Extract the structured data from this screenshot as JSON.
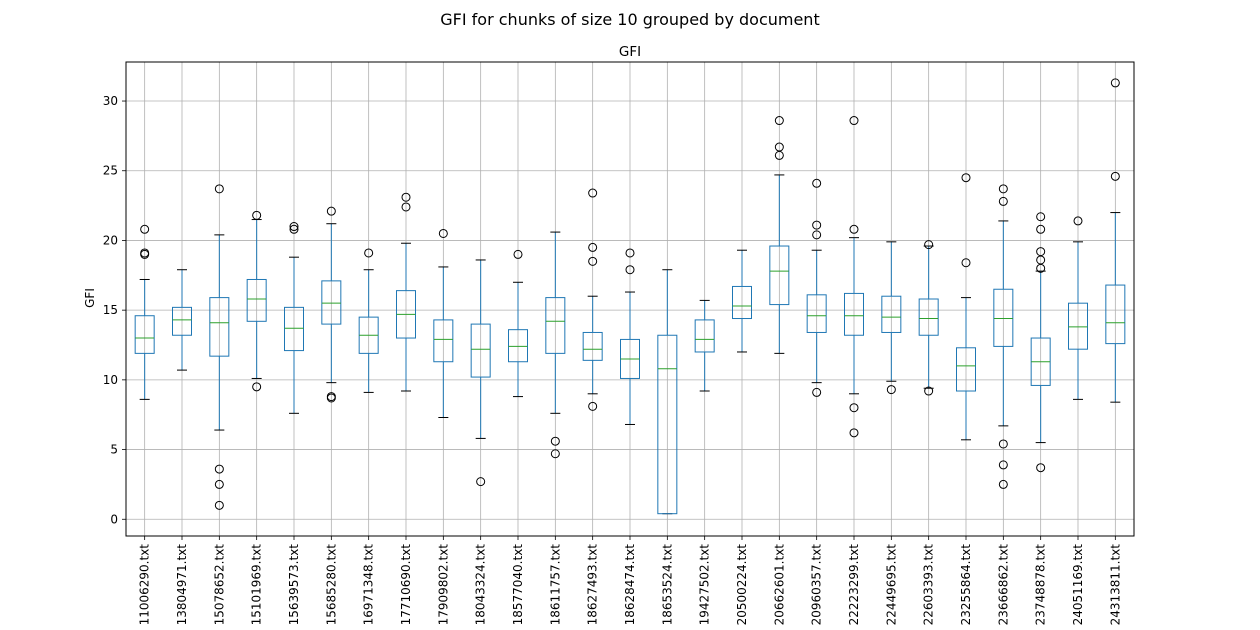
{
  "chart_data": {
    "type": "box",
    "suptitle": "GFI for chunks of size 10 grouped by document",
    "title": "GFI",
    "xlabel": "",
    "ylabel": "GFI",
    "ylim": [
      -1.2,
      32.8
    ],
    "yticks": [
      0,
      5,
      10,
      15,
      20,
      25,
      30
    ],
    "grid": true,
    "colors": {
      "box": "#1f77b4",
      "median": "#2ca02c",
      "whisker": "#1f77b4",
      "cap": "#000000",
      "flier": "#000000",
      "grid": "#b0b0b0"
    },
    "categories": [
      "11006290.txt",
      "13804971.txt",
      "15078652.txt",
      "15101969.txt",
      "15639573.txt",
      "15685280.txt",
      "16971348.txt",
      "17710690.txt",
      "17909802.txt",
      "18043324.txt",
      "18577040.txt",
      "18611757.txt",
      "18627493.txt",
      "18628474.txt",
      "18653524.txt",
      "19427502.txt",
      "20500224.txt",
      "20662601.txt",
      "20960357.txt",
      "22223299.txt",
      "22449695.txt",
      "22603393.txt",
      "23255864.txt",
      "23666862.txt",
      "23748878.txt",
      "24051169.txt",
      "24313811.txt"
    ],
    "boxes": [
      {
        "whislo": 8.6,
        "q1": 11.9,
        "med": 13.0,
        "q3": 14.6,
        "whishi": 17.2,
        "fliers": [
          20.8,
          19.1,
          19.0
        ]
      },
      {
        "whislo": 10.7,
        "q1": 13.2,
        "med": 14.3,
        "q3": 15.2,
        "whishi": 17.9,
        "fliers": []
      },
      {
        "whislo": 6.4,
        "q1": 11.7,
        "med": 14.1,
        "q3": 15.9,
        "whishi": 20.4,
        "fliers": [
          23.7,
          3.6,
          2.5,
          1.0
        ]
      },
      {
        "whislo": 10.1,
        "q1": 14.2,
        "med": 15.8,
        "q3": 17.2,
        "whishi": 21.5,
        "fliers": [
          21.8,
          9.5
        ]
      },
      {
        "whislo": 7.6,
        "q1": 12.1,
        "med": 13.7,
        "q3": 15.2,
        "whishi": 18.8,
        "fliers": [
          21.0,
          20.8
        ]
      },
      {
        "whislo": 9.8,
        "q1": 14.0,
        "med": 15.5,
        "q3": 17.1,
        "whishi": 21.2,
        "fliers": [
          22.1,
          8.8,
          8.7
        ]
      },
      {
        "whislo": 9.1,
        "q1": 11.9,
        "med": 13.2,
        "q3": 14.5,
        "whishi": 17.9,
        "fliers": [
          19.1
        ]
      },
      {
        "whislo": 9.2,
        "q1": 13.0,
        "med": 14.7,
        "q3": 16.4,
        "whishi": 19.8,
        "fliers": [
          23.1,
          22.4
        ]
      },
      {
        "whislo": 7.3,
        "q1": 11.3,
        "med": 12.9,
        "q3": 14.3,
        "whishi": 18.1,
        "fliers": [
          20.5
        ]
      },
      {
        "whislo": 5.8,
        "q1": 10.2,
        "med": 12.2,
        "q3": 14.0,
        "whishi": 18.6,
        "fliers": [
          2.7
        ]
      },
      {
        "whislo": 8.8,
        "q1": 11.3,
        "med": 12.4,
        "q3": 13.6,
        "whishi": 17.0,
        "fliers": [
          19.0
        ]
      },
      {
        "whislo": 7.6,
        "q1": 11.9,
        "med": 14.2,
        "q3": 15.9,
        "whishi": 20.6,
        "fliers": [
          5.6,
          4.7
        ]
      },
      {
        "whislo": 9.0,
        "q1": 11.4,
        "med": 12.2,
        "q3": 13.4,
        "whishi": 16.0,
        "fliers": [
          23.4,
          19.5,
          18.5,
          8.1
        ]
      },
      {
        "whislo": 6.8,
        "q1": 10.1,
        "med": 11.5,
        "q3": 12.9,
        "whishi": 16.3,
        "fliers": [
          19.1,
          17.9
        ]
      },
      {
        "whislo": 0.4,
        "q1": 0.4,
        "med": 10.8,
        "q3": 13.2,
        "whishi": 17.9,
        "fliers": []
      },
      {
        "whislo": 9.2,
        "q1": 12.0,
        "med": 12.9,
        "q3": 14.3,
        "whishi": 15.7,
        "fliers": []
      },
      {
        "whislo": 12.0,
        "q1": 14.4,
        "med": 15.3,
        "q3": 16.7,
        "whishi": 19.3,
        "fliers": []
      },
      {
        "whislo": 11.9,
        "q1": 15.4,
        "med": 17.8,
        "q3": 19.6,
        "whishi": 24.7,
        "fliers": [
          28.6,
          26.7,
          26.1
        ]
      },
      {
        "whislo": 9.8,
        "q1": 13.4,
        "med": 14.6,
        "q3": 16.1,
        "whishi": 19.3,
        "fliers": [
          24.1,
          21.1,
          20.4,
          9.1
        ]
      },
      {
        "whislo": 9.0,
        "q1": 13.2,
        "med": 14.6,
        "q3": 16.2,
        "whishi": 20.2,
        "fliers": [
          28.6,
          20.8,
          8.0,
          6.2
        ]
      },
      {
        "whislo": 9.9,
        "q1": 13.4,
        "med": 14.5,
        "q3": 16.0,
        "whishi": 19.9,
        "fliers": [
          9.3
        ]
      },
      {
        "whislo": 9.4,
        "q1": 13.2,
        "med": 14.4,
        "q3": 15.8,
        "whishi": 19.6,
        "fliers": [
          19.7,
          9.2
        ]
      },
      {
        "whislo": 5.7,
        "q1": 9.2,
        "med": 11.0,
        "q3": 12.3,
        "whishi": 15.9,
        "fliers": [
          24.5,
          18.4
        ]
      },
      {
        "whislo": 6.7,
        "q1": 12.4,
        "med": 14.4,
        "q3": 16.5,
        "whishi": 21.4,
        "fliers": [
          23.7,
          22.8,
          5.4,
          3.9,
          2.5
        ]
      },
      {
        "whislo": 5.5,
        "q1": 9.6,
        "med": 11.3,
        "q3": 13.0,
        "whishi": 17.8,
        "fliers": [
          21.7,
          20.8,
          19.2,
          18.6,
          18.0,
          3.7
        ]
      },
      {
        "whislo": 8.6,
        "q1": 12.2,
        "med": 13.8,
        "q3": 15.5,
        "whishi": 19.9,
        "fliers": [
          21.4
        ]
      },
      {
        "whislo": 8.4,
        "q1": 12.6,
        "med": 14.1,
        "q3": 16.8,
        "whishi": 22.0,
        "fliers": [
          31.3,
          24.6
        ]
      }
    ]
  }
}
